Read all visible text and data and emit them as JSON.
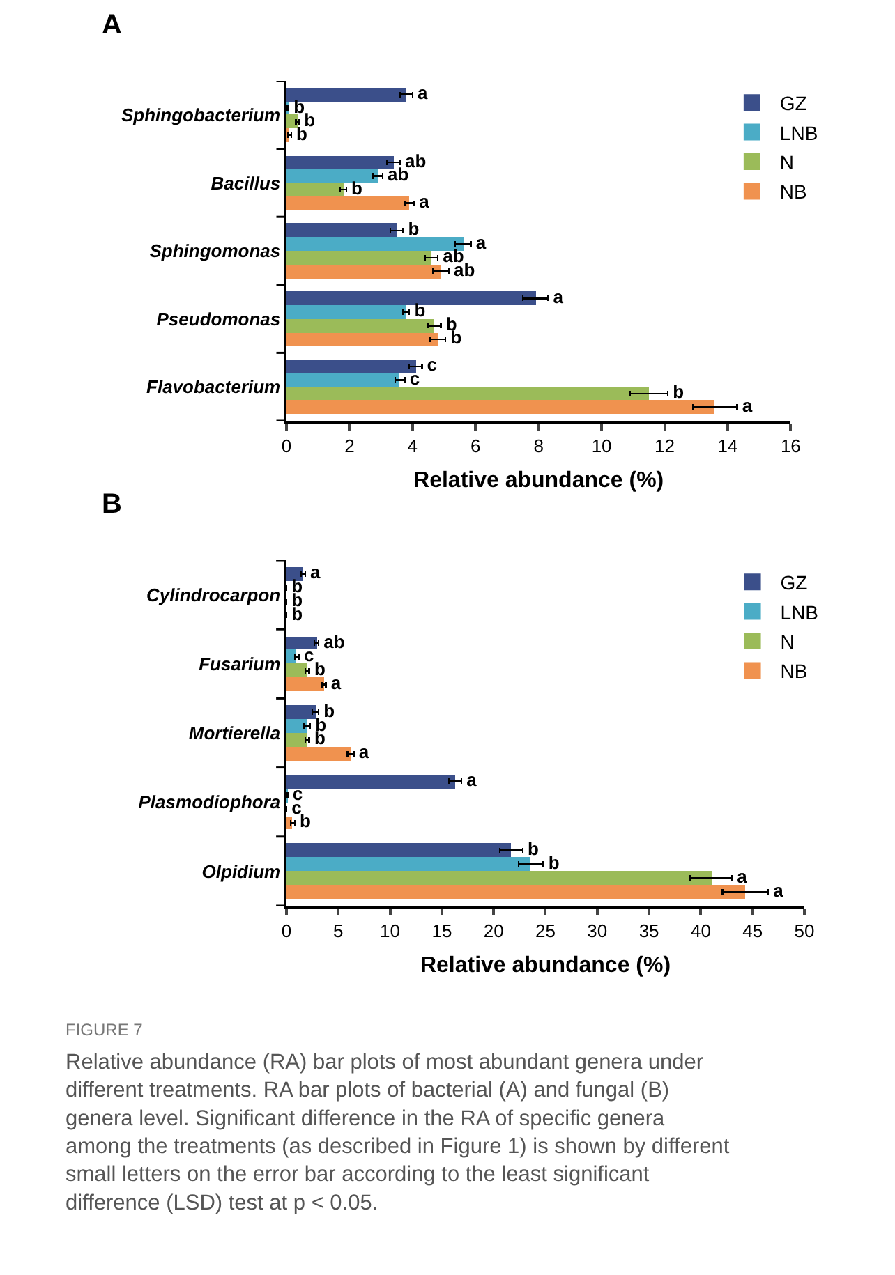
{
  "chart_data": [
    {
      "type": "bar",
      "orientation": "horizontal",
      "title": "A",
      "xlabel": "Relative abundance (%)",
      "categories": [
        "Sphingobacterium",
        "Bacillus",
        "Sphingomonas",
        "Pseudomonas",
        "Flavobacterium"
      ],
      "xlim": [
        0,
        16
      ],
      "xticks": [
        0,
        2,
        4,
        6,
        8,
        10,
        12,
        14,
        16
      ],
      "legend": "top right",
      "series": [
        {
          "name": "GZ",
          "color": "#3b4f8a",
          "values": [
            3.8,
            3.4,
            3.5,
            7.9,
            4.1
          ],
          "errors": [
            0.2,
            0.2,
            0.2,
            0.4,
            0.2
          ],
          "value_labels": [
            "a",
            "ab",
            "b",
            "a",
            "c"
          ]
        },
        {
          "name": "LNB",
          "color": "#4bacc6",
          "values": [
            0.05,
            2.9,
            5.6,
            3.8,
            3.6
          ],
          "errors": [
            0.02,
            0.15,
            0.25,
            0.1,
            0.15
          ],
          "value_labels": [
            "b",
            "ab",
            "a",
            "b",
            "c"
          ]
        },
        {
          "name": "N",
          "color": "#9bbb59",
          "values": [
            0.35,
            1.8,
            4.6,
            4.7,
            11.5
          ],
          "errors": [
            0.05,
            0.1,
            0.2,
            0.2,
            0.6
          ],
          "value_labels": [
            "b",
            "b",
            "ab",
            "b",
            "b"
          ]
        },
        {
          "name": "NB",
          "color": "#f0924f",
          "values": [
            0.1,
            3.9,
            4.9,
            4.8,
            13.6
          ],
          "errors": [
            0.05,
            0.15,
            0.25,
            0.25,
            0.7
          ],
          "value_labels": [
            "b",
            "a",
            "ab",
            "b",
            "a"
          ]
        }
      ]
    },
    {
      "type": "bar",
      "orientation": "horizontal",
      "title": "B",
      "xlabel": "Relative abundance (%)",
      "categories": [
        "Cylindrocarpon",
        "Fusarium",
        "Mortierella",
        "Plasmodiophora",
        "Olpidium"
      ],
      "xlim": [
        0,
        50
      ],
      "xticks": [
        0,
        5,
        10,
        15,
        20,
        25,
        30,
        35,
        40,
        45,
        50
      ],
      "legend": "top right",
      "series": [
        {
          "name": "GZ",
          "color": "#3b4f8a",
          "values": [
            1.6,
            2.9,
            2.8,
            16.3,
            21.7
          ],
          "errors": [
            0.2,
            0.2,
            0.3,
            0.6,
            1.1
          ],
          "value_labels": [
            "a",
            "ab",
            "b",
            "a",
            "b"
          ]
        },
        {
          "name": "LNB",
          "color": "#4bacc6",
          "values": [
            0,
            1.0,
            2.0,
            0.1,
            23.6
          ],
          "errors": [
            null,
            0.2,
            0.3,
            null,
            1.2
          ],
          "value_labels": [
            "b",
            "c",
            "b",
            "c",
            "b"
          ]
        },
        {
          "name": "N",
          "color": "#9bbb59",
          "values": [
            0,
            2.0,
            2.0,
            0,
            41.0
          ],
          "errors": [
            null,
            0.2,
            0.2,
            null,
            2.0
          ],
          "value_labels": [
            "b",
            "b",
            "b",
            "c",
            "a"
          ]
        },
        {
          "name": "NB",
          "color": "#f0924f",
          "values": [
            0,
            3.6,
            6.2,
            0.6,
            44.3
          ],
          "errors": [
            null,
            0.2,
            0.3,
            0.2,
            2.2
          ],
          "value_labels": [
            "b",
            "a",
            "a",
            "b",
            "a"
          ]
        }
      ],
      "annotations": [
        "FIGURE 7",
        "Relative abundance (RA) bar plots of most abundant genera under different treatments. RA bar plots of bacterial (A) and fungal (B) genera level. Significant difference in the RA of specific genera among the treatments (as described in Figure 1) is shown by different small letters on the error bar according to the least significant difference (LSD) test at p < 0.05."
      ]
    }
  ]
}
